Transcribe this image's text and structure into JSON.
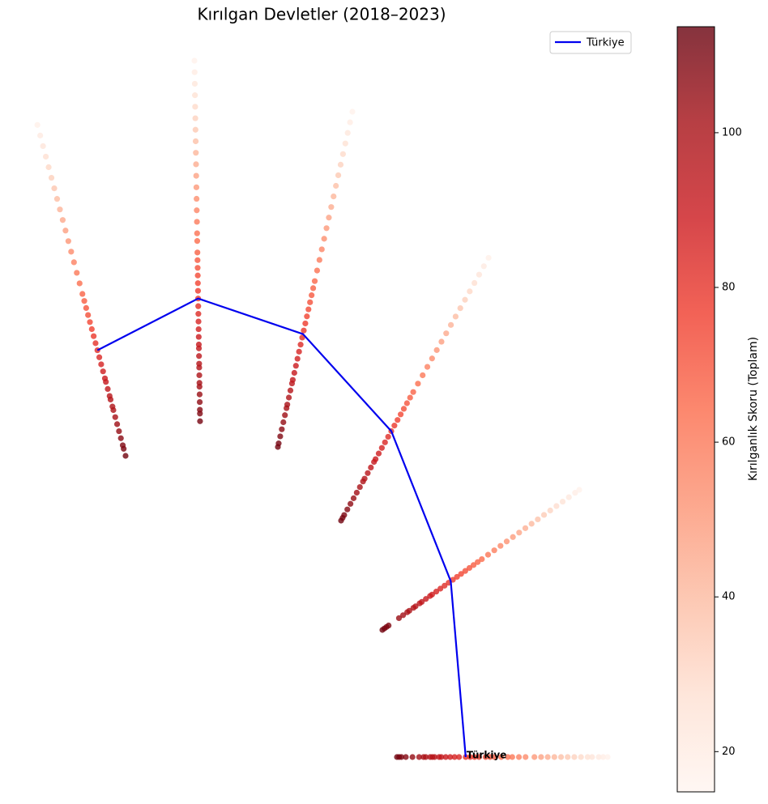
{
  "chart_data": {
    "type": "radial-scatter",
    "title": "Kırılgan Devletler (2018–2023)",
    "colorbar_label": "Kırılganlık Skoru (Toplam)",
    "colormap": "Reds",
    "clim": [
      14.8,
      113.7
    ],
    "cticks": [
      20,
      40,
      60,
      80,
      100
    ],
    "spokes": [
      [
        112,
        110,
        109,
        107,
        105,
        103,
        101,
        99,
        98,
        96,
        95,
        93,
        91,
        90,
        88,
        86,
        84,
        82,
        80,
        78,
        76,
        74,
        72,
        70,
        68,
        66,
        63,
        60,
        57,
        54,
        51,
        48,
        45,
        42,
        39,
        36,
        33,
        30,
        27,
        24,
        21,
        18
      ],
      [
        111,
        109,
        108,
        106,
        104,
        102,
        101,
        99,
        97,
        96,
        94,
        92,
        91,
        89,
        87,
        85,
        83,
        81,
        79,
        77,
        75,
        73,
        71,
        69,
        67,
        64,
        62,
        59,
        56,
        53,
        50,
        47,
        44,
        41,
        38,
        35,
        32,
        29,
        26,
        23,
        20,
        17
      ],
      [
        112,
        111,
        109,
        107,
        105,
        103,
        101,
        100,
        98,
        96,
        94,
        93,
        91,
        89,
        87,
        85,
        83,
        81,
        79,
        77,
        75,
        73,
        71,
        69,
        67,
        65,
        62,
        59,
        56,
        53,
        50,
        47,
        44,
        41,
        38,
        35,
        32,
        29,
        26,
        23,
        20,
        17
      ],
      [
        112,
        111,
        110,
        108,
        106,
        104,
        102,
        100,
        98,
        97,
        95,
        93,
        91,
        90,
        88,
        86,
        84,
        82,
        80,
        78,
        76,
        74,
        72,
        70,
        68,
        66,
        63,
        60,
        57,
        54,
        51,
        48,
        45,
        42,
        39,
        36,
        33,
        30,
        27,
        24,
        21,
        18
      ],
      [
        112,
        111,
        110,
        109,
        104,
        102,
        100,
        99,
        97,
        96,
        94,
        93,
        91,
        89,
        88,
        86,
        84,
        82,
        80,
        78,
        76,
        74,
        72,
        70,
        68,
        66,
        64,
        61,
        58,
        55,
        52,
        49,
        46,
        43,
        40,
        37,
        34,
        31,
        28,
        25,
        22,
        19,
        17
      ],
      [
        112,
        111,
        110,
        108,
        105,
        102,
        100,
        99,
        97,
        96,
        95,
        93,
        92,
        90,
        88,
        86,
        84,
        81,
        79,
        77,
        75,
        72,
        70,
        68,
        65,
        62,
        60,
        57,
        54,
        50,
        47,
        44,
        41,
        38,
        35,
        32,
        29,
        26,
        24,
        21,
        19,
        17
      ]
    ],
    "series": [
      {
        "name": "Türkiye",
        "color": "#0000ee",
        "values": [
          82,
          79,
          80,
          80,
          79,
          81
        ]
      }
    ],
    "annotation": "Türkiye",
    "legend": "upper right"
  }
}
